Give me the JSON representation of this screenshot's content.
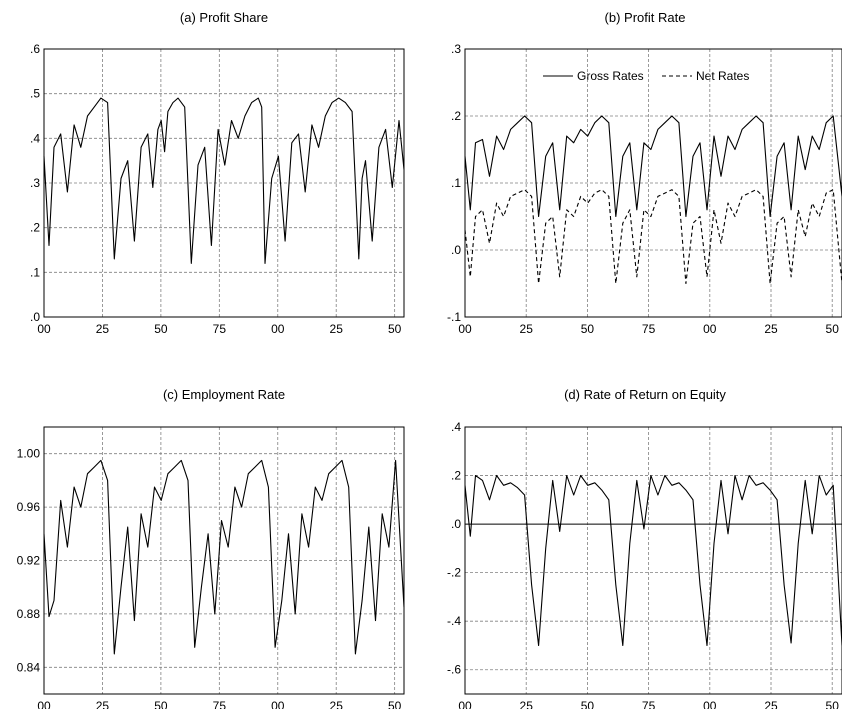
{
  "chart_data": [
    {
      "type": "line",
      "title": "(a) Profit Share",
      "xlabel": "",
      "ylabel": "",
      "x_ticks": [
        "00",
        "25",
        "50",
        "75",
        "00",
        "25",
        "50"
      ],
      "xlim": [
        0,
        215
      ],
      "ylim": [
        0.0,
        0.6
      ],
      "y_ticks": [
        0.0,
        0.1,
        0.2,
        0.3,
        0.4,
        0.5,
        0.6
      ],
      "y_tick_labels": [
        ".0",
        ".1",
        ".2",
        ".3",
        ".4",
        ".5",
        ".6"
      ],
      "grid": true,
      "legend": null,
      "series": [
        {
          "style": "solid",
          "x": [
            0,
            3,
            6,
            10,
            14,
            18,
            22,
            26,
            30,
            34,
            38,
            42,
            46,
            50,
            54,
            58,
            62,
            65,
            68,
            70,
            72,
            74,
            77,
            80,
            84,
            88,
            92,
            96,
            100,
            104,
            108,
            112,
            116,
            120,
            124,
            128,
            130,
            132,
            136,
            140,
            144,
            148,
            152,
            156,
            160,
            164,
            168,
            172,
            176,
            180,
            184,
            188,
            190,
            192,
            196,
            200,
            204,
            208,
            212,
            215
          ],
          "y": [
            0.36,
            0.16,
            0.38,
            0.41,
            0.28,
            0.43,
            0.38,
            0.45,
            0.47,
            0.49,
            0.48,
            0.13,
            0.31,
            0.35,
            0.17,
            0.38,
            0.41,
            0.29,
            0.42,
            0.44,
            0.37,
            0.46,
            0.48,
            0.49,
            0.47,
            0.12,
            0.34,
            0.38,
            0.16,
            0.42,
            0.34,
            0.44,
            0.4,
            0.45,
            0.48,
            0.49,
            0.47,
            0.12,
            0.31,
            0.36,
            0.17,
            0.39,
            0.41,
            0.28,
            0.43,
            0.38,
            0.45,
            0.48,
            0.49,
            0.48,
            0.46,
            0.13,
            0.31,
            0.35,
            0.17,
            0.38,
            0.42,
            0.29,
            0.44,
            0.33
          ]
        }
      ]
    },
    {
      "type": "line",
      "title": "(b) Profit Rate",
      "xlabel": "",
      "ylabel": "",
      "x_ticks": [
        "00",
        "25",
        "50",
        "75",
        "00",
        "25",
        "50"
      ],
      "xlim": [
        0,
        215
      ],
      "ylim": [
        -0.1,
        0.3
      ],
      "y_ticks": [
        -0.1,
        0.0,
        0.1,
        0.2,
        0.3
      ],
      "y_tick_labels": [
        "-.1",
        ".0",
        ".1",
        ".2",
        ".3"
      ],
      "grid": true,
      "legend": "top-center",
      "series": [
        {
          "name": "Gross Rates",
          "style": "solid",
          "x": [
            0,
            3,
            6,
            10,
            14,
            18,
            22,
            26,
            30,
            34,
            38,
            42,
            46,
            50,
            54,
            58,
            62,
            66,
            70,
            74,
            78,
            82,
            86,
            90,
            94,
            98,
            102,
            106,
            110,
            114,
            118,
            122,
            126,
            130,
            134,
            138,
            142,
            146,
            150,
            154,
            158,
            162,
            166,
            170,
            174,
            178,
            182,
            186,
            190,
            194,
            198,
            202,
            206,
            210,
            215
          ],
          "y": [
            0.14,
            0.06,
            0.16,
            0.165,
            0.11,
            0.17,
            0.15,
            0.18,
            0.19,
            0.2,
            0.19,
            0.05,
            0.14,
            0.16,
            0.06,
            0.17,
            0.16,
            0.18,
            0.17,
            0.19,
            0.2,
            0.19,
            0.05,
            0.14,
            0.16,
            0.06,
            0.16,
            0.15,
            0.18,
            0.19,
            0.2,
            0.19,
            0.05,
            0.14,
            0.16,
            0.06,
            0.17,
            0.11,
            0.17,
            0.15,
            0.18,
            0.19,
            0.2,
            0.19,
            0.05,
            0.14,
            0.16,
            0.06,
            0.17,
            0.12,
            0.17,
            0.15,
            0.19,
            0.2,
            0.08
          ]
        },
        {
          "name": "Net Rates",
          "style": "dashed",
          "x": [
            0,
            3,
            6,
            10,
            14,
            18,
            22,
            26,
            30,
            34,
            38,
            42,
            46,
            50,
            54,
            58,
            62,
            66,
            70,
            74,
            78,
            82,
            86,
            90,
            94,
            98,
            102,
            106,
            110,
            114,
            118,
            122,
            126,
            130,
            134,
            138,
            142,
            146,
            150,
            154,
            158,
            162,
            166,
            170,
            174,
            178,
            182,
            186,
            190,
            194,
            198,
            202,
            206,
            210,
            215
          ],
          "y": [
            0.03,
            -0.04,
            0.05,
            0.06,
            0.01,
            0.07,
            0.05,
            0.08,
            0.085,
            0.09,
            0.08,
            -0.05,
            0.04,
            0.05,
            -0.04,
            0.06,
            0.05,
            0.08,
            0.07,
            0.085,
            0.09,
            0.08,
            -0.05,
            0.04,
            0.06,
            -0.04,
            0.06,
            0.05,
            0.08,
            0.085,
            0.09,
            0.08,
            -0.05,
            0.04,
            0.05,
            -0.04,
            0.06,
            0.01,
            0.07,
            0.05,
            0.08,
            0.085,
            0.09,
            0.08,
            -0.05,
            0.04,
            0.05,
            -0.04,
            0.06,
            0.02,
            0.07,
            0.05,
            0.085,
            0.09,
            -0.05
          ]
        }
      ]
    },
    {
      "type": "line",
      "title": "(c) Employment Rate",
      "xlabel": "",
      "ylabel": "",
      "x_ticks": [
        "00",
        "25",
        "50",
        "75",
        "00",
        "25",
        "50"
      ],
      "xlim": [
        0,
        215
      ],
      "ylim": [
        0.82,
        1.02
      ],
      "y_ticks": [
        0.84,
        0.88,
        0.92,
        0.96,
        1.0
      ],
      "y_tick_labels": [
        "0.84",
        "0.88",
        "0.92",
        "0.96",
        "1.00"
      ],
      "grid": true,
      "legend": null,
      "series": [
        {
          "style": "solid",
          "x": [
            0,
            3,
            6,
            10,
            14,
            18,
            22,
            26,
            30,
            34,
            38,
            42,
            46,
            50,
            54,
            58,
            62,
            66,
            70,
            74,
            78,
            82,
            86,
            90,
            94,
            98,
            102,
            106,
            110,
            114,
            118,
            122,
            126,
            130,
            134,
            138,
            142,
            146,
            150,
            154,
            158,
            162,
            166,
            170,
            174,
            178,
            182,
            186,
            190,
            194,
            198,
            202,
            206,
            210,
            215
          ],
          "y": [
            0.94,
            0.878,
            0.89,
            0.965,
            0.93,
            0.975,
            0.96,
            0.985,
            0.99,
            0.995,
            0.98,
            0.85,
            0.9,
            0.945,
            0.875,
            0.955,
            0.93,
            0.975,
            0.965,
            0.985,
            0.99,
            0.995,
            0.98,
            0.855,
            0.9,
            0.94,
            0.88,
            0.95,
            0.93,
            0.975,
            0.96,
            0.985,
            0.99,
            0.995,
            0.975,
            0.855,
            0.89,
            0.94,
            0.88,
            0.955,
            0.93,
            0.975,
            0.965,
            0.985,
            0.99,
            0.995,
            0.975,
            0.85,
            0.89,
            0.945,
            0.875,
            0.955,
            0.93,
            0.995,
            0.885
          ]
        }
      ]
    },
    {
      "type": "line",
      "title": "(d) Rate of Return on Equity",
      "xlabel": "",
      "ylabel": "",
      "x_ticks": [
        "00",
        "25",
        "50",
        "75",
        "00",
        "25",
        "50"
      ],
      "xlim": [
        0,
        215
      ],
      "ylim": [
        -0.7,
        0.4
      ],
      "y_ticks": [
        -0.6,
        -0.4,
        -0.2,
        0.0,
        0.2,
        0.4
      ],
      "y_tick_labels": [
        "-.6",
        "-.4",
        "-.2",
        ".0",
        ".2",
        ".4"
      ],
      "grid": true,
      "legend": null,
      "series": [
        {
          "style": "solid",
          "x": [
            0,
            3,
            6,
            10,
            14,
            18,
            22,
            26,
            30,
            34,
            38,
            42,
            46,
            50,
            54,
            58,
            62,
            66,
            70,
            74,
            78,
            82,
            86,
            90,
            94,
            98,
            102,
            106,
            110,
            114,
            118,
            122,
            126,
            130,
            134,
            138,
            142,
            146,
            150,
            154,
            158,
            162,
            166,
            170,
            174,
            178,
            182,
            186,
            190,
            194,
            198,
            202,
            206,
            210,
            215
          ],
          "y": [
            0.16,
            -0.05,
            0.2,
            0.18,
            0.1,
            0.2,
            0.16,
            0.17,
            0.15,
            0.12,
            -0.25,
            -0.5,
            -0.1,
            0.18,
            -0.03,
            0.2,
            0.12,
            0.2,
            0.16,
            0.17,
            0.14,
            0.1,
            -0.25,
            -0.5,
            -0.08,
            0.18,
            -0.02,
            0.2,
            0.12,
            0.2,
            0.16,
            0.17,
            0.14,
            0.1,
            -0.25,
            -0.5,
            -0.08,
            0.18,
            -0.04,
            0.2,
            0.1,
            0.2,
            0.16,
            0.17,
            0.14,
            0.1,
            -0.25,
            -0.49,
            -0.08,
            0.18,
            -0.04,
            0.2,
            0.12,
            0.16,
            -0.5
          ]
        }
      ]
    }
  ]
}
